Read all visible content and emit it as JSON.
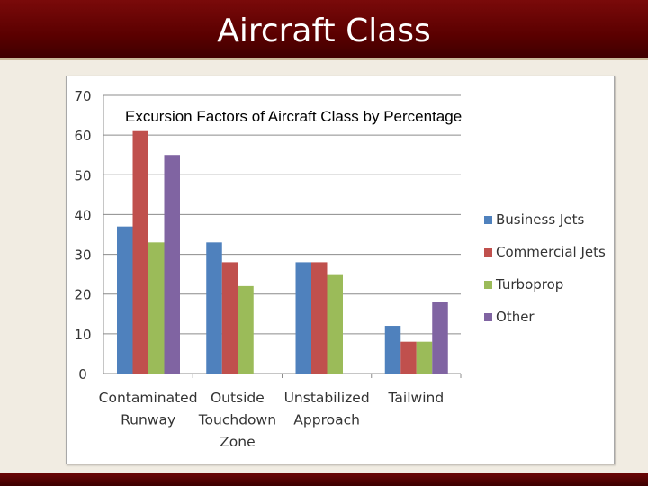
{
  "slide": {
    "title": "Aircraft Class"
  },
  "chart_data": {
    "type": "bar",
    "title": "Excursion Factors of Aircraft Class by Percentage",
    "xlabel": "",
    "ylabel": "",
    "ylim": [
      0,
      70
    ],
    "yticks": [
      "0",
      "10",
      "20",
      "30",
      "40",
      "50",
      "60",
      "70"
    ],
    "grid": true,
    "legend_position": "right",
    "categories": [
      [
        "Contaminated",
        "Runway"
      ],
      [
        "Outside",
        "Touchdown",
        "Zone"
      ],
      [
        "Unstabilized",
        "Approach"
      ],
      [
        "Tailwind"
      ]
    ],
    "series": [
      {
        "name": "Business Jets",
        "color": "#4f81bd",
        "values": [
          37,
          33,
          28,
          12
        ]
      },
      {
        "name": "Commercial Jets",
        "color": "#c0504d",
        "values": [
          61,
          28,
          28,
          8
        ]
      },
      {
        "name": "Turboprop",
        "color": "#9bbb59",
        "values": [
          33,
          22,
          25,
          8
        ]
      },
      {
        "name": "Other",
        "color": "#8064a2",
        "values": [
          55,
          null,
          null,
          18
        ]
      }
    ]
  }
}
